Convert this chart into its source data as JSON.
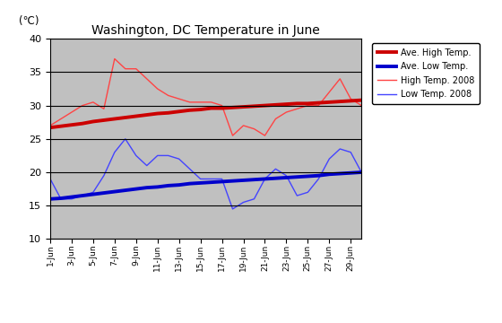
{
  "title": "Washington, DC Temperature in June",
  "ylabel": "(℃)",
  "ylim": [
    10,
    40
  ],
  "yticks": [
    10,
    15,
    20,
    25,
    30,
    35,
    40
  ],
  "background_color": "#c0c0c0",
  "days": [
    1,
    2,
    3,
    4,
    5,
    6,
    7,
    8,
    9,
    10,
    11,
    12,
    13,
    14,
    15,
    16,
    17,
    18,
    19,
    20,
    21,
    22,
    23,
    24,
    25,
    26,
    27,
    28,
    29,
    30
  ],
  "xlabels": [
    "1-Jun",
    "3-Jun",
    "5-Jun",
    "7-Jun",
    "9-Jun",
    "11-Jun",
    "13-Jun",
    "15-Jun",
    "17-Jun",
    "19-Jun",
    "21-Jun",
    "23-Jun",
    "25-Jun",
    "27-Jun",
    "29-Jun"
  ],
  "xtick_positions": [
    1,
    3,
    5,
    7,
    9,
    11,
    13,
    15,
    17,
    19,
    21,
    23,
    25,
    27,
    29
  ],
  "ave_high": [
    26.7,
    26.9,
    27.1,
    27.3,
    27.6,
    27.8,
    28.0,
    28.2,
    28.4,
    28.6,
    28.8,
    28.9,
    29.1,
    29.3,
    29.4,
    29.6,
    29.6,
    29.7,
    29.8,
    29.9,
    30.0,
    30.1,
    30.2,
    30.3,
    30.3,
    30.4,
    30.5,
    30.6,
    30.7,
    30.8
  ],
  "ave_low": [
    16.0,
    16.1,
    16.3,
    16.5,
    16.7,
    16.9,
    17.1,
    17.3,
    17.5,
    17.7,
    17.8,
    18.0,
    18.1,
    18.3,
    18.4,
    18.5,
    18.6,
    18.7,
    18.8,
    18.9,
    19.0,
    19.1,
    19.2,
    19.3,
    19.4,
    19.5,
    19.7,
    19.8,
    19.9,
    20.0
  ],
  "high_2008": [
    27.0,
    28.0,
    29.0,
    30.0,
    30.5,
    29.5,
    37.0,
    35.5,
    35.5,
    34.0,
    32.5,
    31.5,
    31.0,
    30.5,
    30.5,
    30.5,
    30.0,
    25.5,
    27.0,
    26.5,
    25.5,
    28.0,
    29.0,
    29.5,
    30.0,
    30.0,
    32.0,
    34.0,
    31.0,
    30.0
  ],
  "low_2008": [
    19.0,
    16.0,
    16.0,
    16.5,
    17.0,
    19.5,
    23.0,
    25.0,
    22.5,
    21.0,
    22.5,
    22.5,
    22.0,
    20.5,
    19.0,
    19.0,
    19.0,
    14.5,
    15.5,
    16.0,
    19.0,
    20.5,
    19.5,
    16.5,
    17.0,
    19.0,
    22.0,
    23.5,
    23.0,
    20.0
  ],
  "ave_high_color": "#cc0000",
  "ave_low_color": "#0000cc",
  "high_2008_color": "#ff4444",
  "low_2008_color": "#4444ff",
  "ave_high_lw": 2.8,
  "ave_low_lw": 2.8,
  "high_2008_lw": 1.0,
  "low_2008_lw": 1.0,
  "legend_labels": [
    "Ave. High Temp.",
    "Ave. Low Temp.",
    "High Temp. 2008",
    "Low Temp. 2008"
  ],
  "grid_color": "#000000",
  "fig_width": 5.6,
  "fig_height": 3.6,
  "fig_dpi": 100
}
